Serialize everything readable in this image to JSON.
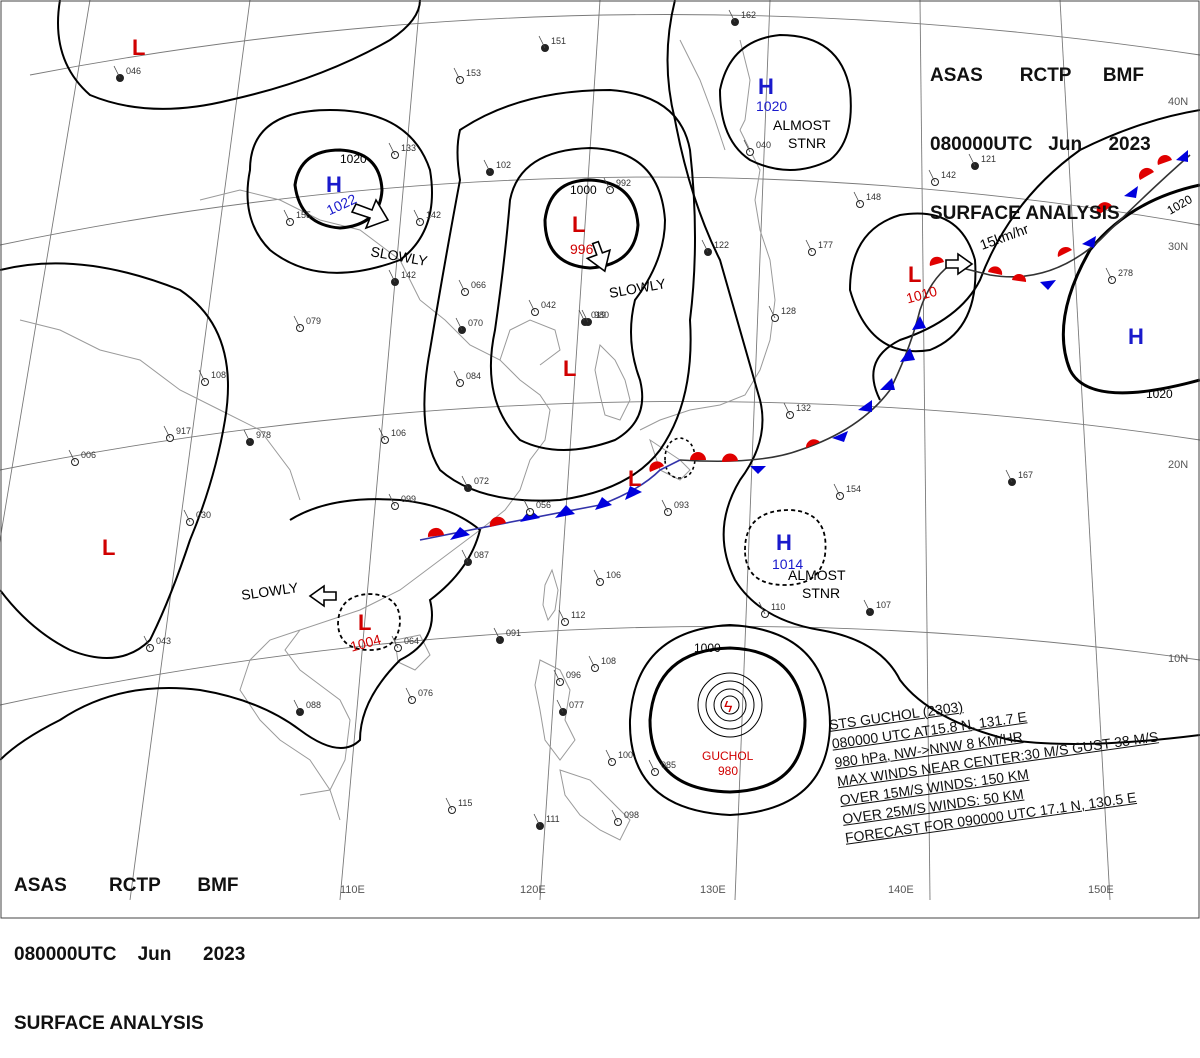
{
  "header": {
    "agency": "ASAS",
    "station": "RCTP",
    "office": "BMF",
    "time": "080000UTC",
    "month": "Jun",
    "year": "2023",
    "product": "SURFACE ANALYSIS"
  },
  "grid": {
    "lon_labels": [
      "110E",
      "120E",
      "130E",
      "140E",
      "150E"
    ],
    "lat_labels": [
      "40N",
      "30N",
      "20N",
      "10N"
    ]
  },
  "pressure_centers": [
    {
      "type": "L",
      "value": "",
      "color": "#d00000"
    },
    {
      "type": "H",
      "value": "1022",
      "color": "#1a1acc"
    },
    {
      "type": "L",
      "value": "996",
      "color": "#d00000"
    },
    {
      "type": "H",
      "value": "1020",
      "color": "#1a1acc"
    },
    {
      "type": "L",
      "value": "",
      "color": "#d00000"
    },
    {
      "type": "L",
      "value": "1010",
      "color": "#d00000"
    },
    {
      "type": "H",
      "value": "",
      "color": "#1a1acc"
    },
    {
      "type": "L",
      "value": "",
      "color": "#d00000"
    },
    {
      "type": "L",
      "value": "1004",
      "color": "#d00000"
    },
    {
      "type": "H",
      "value": "1014",
      "color": "#1a1acc"
    },
    {
      "type": "L",
      "value": "",
      "color": "#d00000"
    }
  ],
  "isobar_labels": [
    "1020",
    "1000",
    "1020",
    "1020",
    "1000"
  ],
  "motion_labels": {
    "slowly_1": "SLOWLY",
    "slowly_2": "SLOWLY",
    "slowly_3": "SLOWLY",
    "almost_stnr_1": "ALMOST\nSTNR",
    "almost_stnr_2": "ALMOST\nSTNR",
    "speed": "15km/hr"
  },
  "typhoon": {
    "name": "GUCHOL",
    "pressure": "980",
    "lines": [
      "STS  GUCHOL  (2303)",
      "080000 UTC  AT15.8 N, 131.7 E",
      "980 hPa, NW->NNW  8 KM/HR",
      "MAX WINDS NEAR CENTER:30 M/S GUST 38 M/S",
      "OVER 15M/S WINDS: 150 KM",
      "OVER 25M/S WINDS: 50 KM",
      "FORECAST FOR 090000 UTC 17.1 N, 130.5 E"
    ]
  },
  "colors": {
    "low": "#d00000",
    "high": "#1a1acc",
    "isobar": "#000000",
    "coast": "#9a9a9a",
    "warm_front": "#e00000",
    "cold_front": "#0000dd"
  },
  "station_samples": [
    {
      "label": "151"
    },
    {
      "label": "153"
    },
    {
      "label": "133"
    },
    {
      "label": "102"
    },
    {
      "label": "142"
    },
    {
      "label": "155"
    },
    {
      "label": "142"
    },
    {
      "label": "066"
    },
    {
      "label": "079"
    },
    {
      "label": "070"
    },
    {
      "label": "084"
    },
    {
      "label": "042"
    },
    {
      "label": "019"
    },
    {
      "label": "108"
    },
    {
      "label": "917"
    },
    {
      "label": "978"
    },
    {
      "label": "006"
    },
    {
      "label": "106"
    },
    {
      "label": "072"
    },
    {
      "label": "056"
    },
    {
      "label": "099"
    },
    {
      "label": "087"
    },
    {
      "label": "093"
    },
    {
      "label": "030"
    },
    {
      "label": "122"
    },
    {
      "label": "177"
    },
    {
      "label": "148"
    },
    {
      "label": "121"
    },
    {
      "label": "142"
    },
    {
      "label": "278"
    },
    {
      "label": "167"
    },
    {
      "label": "154"
    },
    {
      "label": "110"
    },
    {
      "label": "107"
    },
    {
      "label": "106"
    },
    {
      "label": "112"
    },
    {
      "label": "091"
    },
    {
      "label": "064"
    },
    {
      "label": "076"
    },
    {
      "label": "088"
    },
    {
      "label": "096"
    },
    {
      "label": "115"
    },
    {
      "label": "111"
    },
    {
      "label": "098"
    },
    {
      "label": "100"
    },
    {
      "label": "077"
    },
    {
      "label": "085"
    },
    {
      "label": "108"
    },
    {
      "label": "162"
    },
    {
      "label": "132"
    },
    {
      "label": "128"
    },
    {
      "label": "980"
    },
    {
      "label": "992"
    },
    {
      "label": "040"
    },
    {
      "label": "046"
    },
    {
      "label": "043"
    }
  ]
}
